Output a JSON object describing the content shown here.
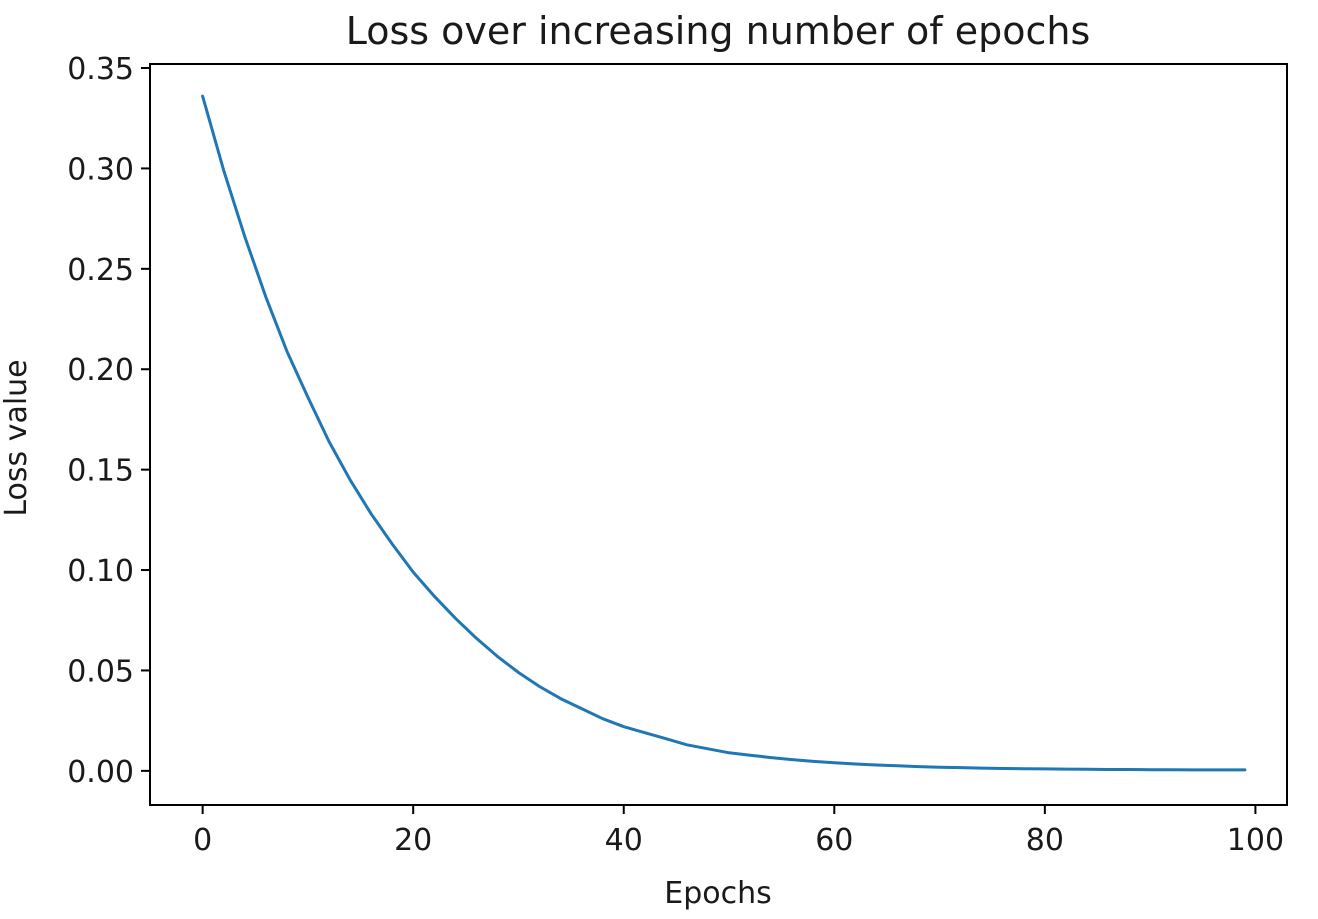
{
  "chart_data": {
    "type": "line",
    "title": "Loss over increasing number of epochs",
    "xlabel": "Epochs",
    "ylabel": "Loss value",
    "xlim": [
      -5,
      103
    ],
    "ylim": [
      -0.017,
      0.352
    ],
    "xticks": [
      0,
      20,
      40,
      60,
      80,
      100
    ],
    "xtick_labels": [
      "0",
      "20",
      "40",
      "60",
      "80",
      "100"
    ],
    "yticks": [
      0.0,
      0.05,
      0.1,
      0.15,
      0.2,
      0.25,
      0.3,
      0.35
    ],
    "ytick_labels": [
      "0.00",
      "0.05",
      "0.10",
      "0.15",
      "0.20",
      "0.25",
      "0.30",
      "0.35"
    ],
    "grid": false,
    "series": [
      {
        "color": "#1f77b4",
        "x": [
          0,
          2,
          4,
          6,
          8,
          10,
          12,
          14,
          16,
          18,
          20,
          22,
          24,
          26,
          28,
          30,
          32,
          34,
          36,
          38,
          40,
          42,
          44,
          46,
          48,
          50,
          52,
          54,
          56,
          58,
          60,
          62,
          64,
          66,
          68,
          70,
          72,
          74,
          76,
          78,
          80,
          82,
          84,
          86,
          88,
          90,
          92,
          94,
          96,
          98,
          99
        ],
        "y": [
          0.336,
          0.299,
          0.266,
          0.236,
          0.209,
          0.186,
          0.164,
          0.145,
          0.128,
          0.113,
          0.099,
          0.087,
          0.076,
          0.066,
          0.057,
          0.049,
          0.042,
          0.036,
          0.031,
          0.026,
          0.022,
          0.019,
          0.016,
          0.013,
          0.011,
          0.009,
          0.0078,
          0.0066,
          0.0056,
          0.0047,
          0.004,
          0.0034,
          0.0029,
          0.0025,
          0.0021,
          0.0018,
          0.0016,
          0.0014,
          0.0012,
          0.0011,
          0.001,
          0.0009,
          0.0008,
          0.0007,
          0.0007,
          0.0006,
          0.0006,
          0.0005,
          0.0005,
          0.0005,
          0.0005
        ]
      }
    ]
  }
}
